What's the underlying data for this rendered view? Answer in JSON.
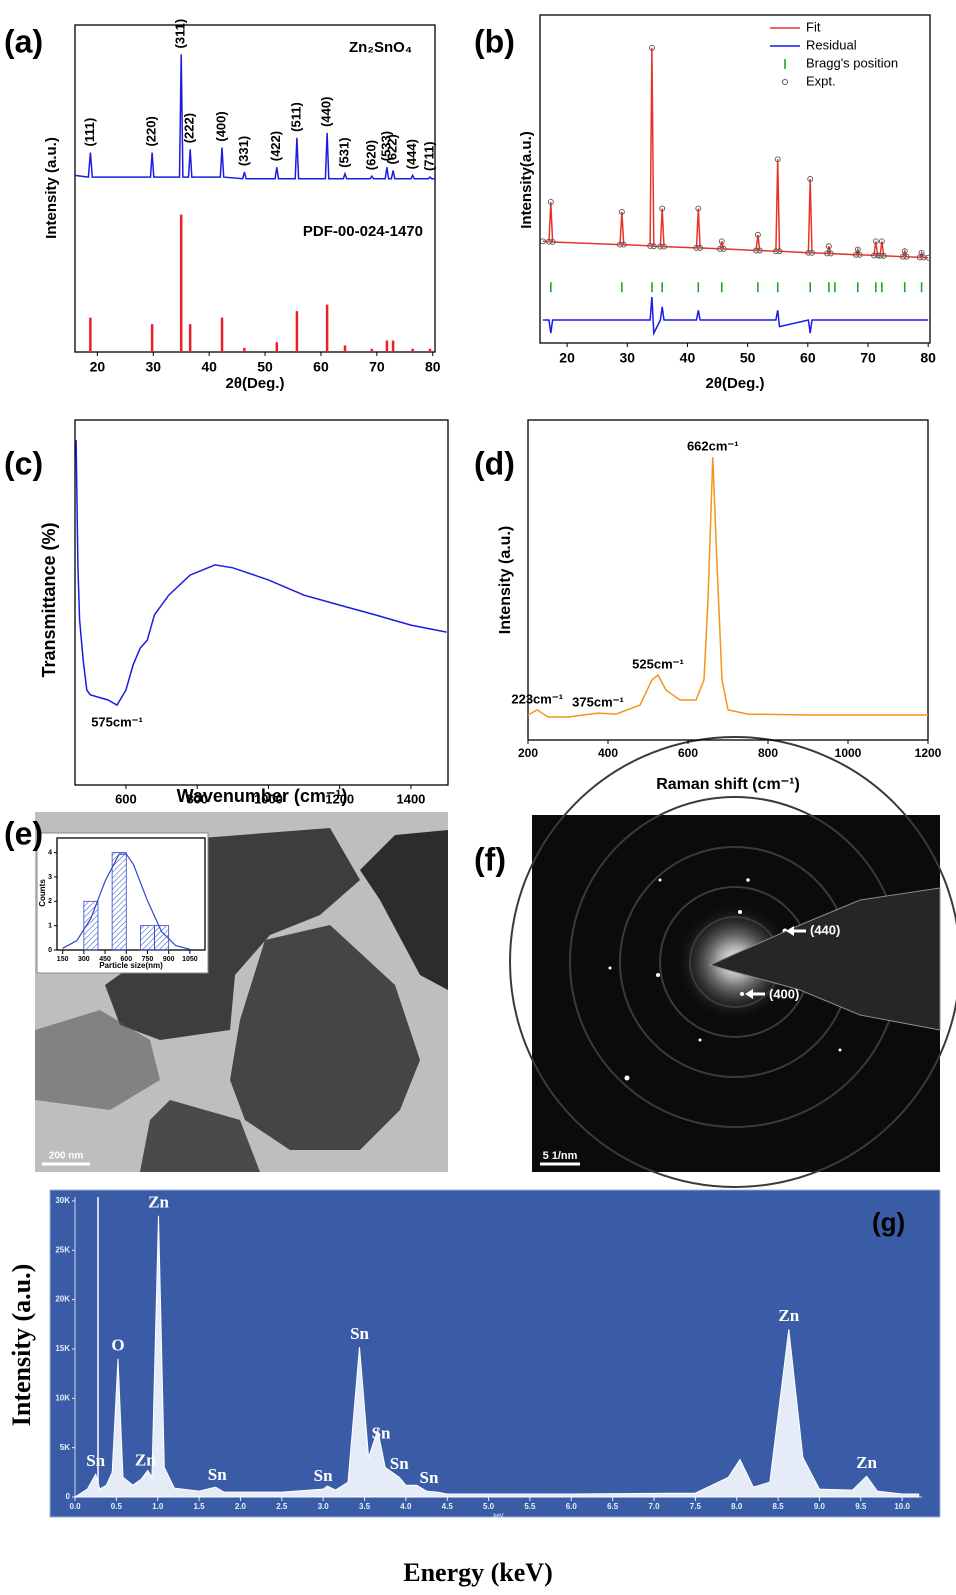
{
  "chart_data": [
    {
      "type": "line",
      "panel_label": "(a)",
      "x_label": "2θ(Deg.)",
      "y_label": "Intensity (a.u.)",
      "xlim": [
        16,
        80.4
      ],
      "xticks": [
        20,
        30,
        40,
        50,
        60,
        70,
        80
      ],
      "ylim": [
        0,
        200
      ],
      "series": [
        {
          "name": "Zn₂SnO₄",
          "color": "#1c1ce0",
          "type": "line",
          "x": [
            16,
            18.4,
            18.75,
            19.1,
            29.5,
            29.8,
            30.1,
            34.7,
            35.0,
            35.3,
            36.3,
            36.6,
            36.9,
            42.0,
            42.3,
            42.6,
            46.0,
            46.3,
            46.6,
            51.8,
            52.1,
            52.4,
            55.4,
            55.7,
            56.0,
            60.8,
            61.1,
            61.4,
            64.0,
            64.3,
            64.6,
            68.8,
            69.1,
            69.4,
            71.5,
            71.8,
            72.1,
            72.6,
            72.9,
            73.2,
            76.1,
            76.4,
            76.7,
            79.2,
            79.5,
            79.8,
            80.4
          ],
          "values": [
            108,
            107,
            122,
            107,
            107,
            122,
            107,
            107,
            182,
            107,
            107,
            124,
            107,
            107,
            125,
            107,
            106,
            110,
            106,
            106,
            113,
            106,
            106,
            131,
            106,
            106,
            134,
            106,
            106,
            109,
            106,
            106,
            107.5,
            106,
            106,
            113,
            106,
            106,
            111,
            106,
            106,
            108,
            106,
            106,
            107,
            106,
            106
          ]
        },
        {
          "name": "PDF-00-024-1470",
          "color": "#e8202a",
          "type": "stick",
          "x": [
            18.75,
            29.8,
            35.0,
            36.6,
            42.3,
            46.3,
            52.1,
            55.7,
            61.1,
            64.3,
            69.1,
            71.8,
            72.9,
            76.4,
            79.5
          ],
          "values": [
            21,
            17,
            84,
            17,
            21,
            2.5,
            6,
            25,
            29,
            4,
            2,
            7,
            7,
            2,
            2
          ],
          "labels": [
            "(111)",
            "(220)",
            "(311)",
            "(222)",
            "(400)",
            "(331)",
            "(422)",
            "(511)",
            "(440)",
            "(531)",
            "(620)",
            "(533)",
            "(622)",
            "(444)",
            "(711)"
          ]
        }
      ]
    },
    {
      "type": "line",
      "panel_label": "(b)",
      "x_label": "2θ(Deg.)",
      "y_label": "Intensity(a.u.)",
      "xlim": [
        15.5,
        80.3
      ],
      "xticks": [
        20,
        30,
        40,
        50,
        60,
        70,
        80
      ],
      "ylim": [
        0,
        100
      ],
      "legend": "upper right",
      "x": [
        16,
        17.0,
        17.3,
        17.6,
        28.8,
        29.1,
        29.4,
        33.8,
        34.1,
        34.4,
        35.5,
        35.8,
        36.1,
        41.5,
        41.8,
        42.1,
        45.4,
        45.7,
        46.0,
        51.4,
        51.7,
        52.0,
        54.7,
        55.0,
        55.3,
        60.1,
        60.4,
        60.7,
        63.2,
        63.5,
        63.8,
        68.0,
        68.3,
        68.6,
        71.0,
        71.3,
        71.6,
        72.0,
        72.3,
        72.6,
        75.8,
        76.1,
        76.4,
        78.6,
        78.9,
        79.2,
        80
      ],
      "series": [
        {
          "name": "Fit",
          "color": "#e8332a",
          "type": "line",
          "values": [
            31,
            30.9,
            43,
            30.8,
            30.0,
            40,
            30.0,
            29.6,
            90,
            29.5,
            29.4,
            41,
            29.4,
            29.0,
            41,
            29.0,
            28.7,
            31,
            28.7,
            28.2,
            33,
            28.2,
            28.0,
            56,
            28.0,
            27.5,
            50,
            27.5,
            27.3,
            29.5,
            27.3,
            26.9,
            28.5,
            26.9,
            26.7,
            31,
            26.7,
            26.6,
            31,
            26.6,
            26.3,
            28,
            26.3,
            26.1,
            27.5,
            26.1,
            26
          ]
        },
        {
          "name": "Residual",
          "color": "#1a1ae6",
          "type": "line",
          "values": [
            7,
            7,
            3,
            7,
            7,
            7,
            7,
            7,
            14,
            3,
            7,
            11,
            7,
            7,
            10,
            7,
            7,
            7,
            7,
            7,
            7,
            7,
            7,
            10,
            5,
            7,
            3,
            7,
            7,
            7,
            7,
            7,
            7,
            7,
            7,
            7,
            7,
            7,
            7,
            7,
            7,
            7,
            7,
            7,
            7,
            7,
            7
          ]
        },
        {
          "name": "Bragg's position",
          "color": "#2aa02a",
          "type": "tick",
          "level": 17,
          "x": [
            17.3,
            29.1,
            34.1,
            35.8,
            41.8,
            45.7,
            51.7,
            55.0,
            60.4,
            63.5,
            64.5,
            68.3,
            71.3,
            72.3,
            76.1,
            78.9
          ]
        },
        {
          "name": "Expt.",
          "color": "#555555",
          "type": "scatter",
          "values": [
            31,
            30.9,
            43,
            30.8,
            30.0,
            40,
            30.0,
            29.6,
            90,
            29.5,
            29.4,
            41,
            29.4,
            29.0,
            41,
            29.0,
            28.7,
            31,
            28.7,
            28.2,
            33,
            28.2,
            28.0,
            56,
            28.0,
            27.5,
            50,
            27.5,
            27.3,
            29.5,
            27.3,
            26.9,
            28.5,
            26.9,
            26.7,
            31,
            26.7,
            26.6,
            31,
            26.6,
            26.3,
            28,
            26.3,
            26.1,
            27.5,
            26.1,
            26
          ]
        }
      ]
    },
    {
      "type": "line",
      "panel_label": "(c)",
      "x_label": "Wavenumber (cm⁻¹)",
      "y_label": "Transmittance (%)",
      "xlim": [
        457,
        1504
      ],
      "xticks": [
        600,
        800,
        1000,
        1200,
        1400
      ],
      "ylim": [
        0,
        100
      ],
      "color": "#1c1ce0",
      "x": [
        460,
        465,
        470,
        480,
        490,
        500,
        550,
        575,
        600,
        620,
        640,
        660,
        680,
        720,
        780,
        850,
        900,
        1000,
        1100,
        1200,
        1300,
        1400,
        1500
      ],
      "values": [
        94.5,
        60,
        45.2,
        34.2,
        26,
        24.7,
        23.3,
        21.9,
        26,
        32.9,
        37.5,
        39.7,
        46.6,
        52,
        57.5,
        60.3,
        59.5,
        56.2,
        52,
        49.3,
        46.6,
        43.8,
        41.9
      ],
      "annotations": [
        {
          "text": "575cm⁻¹",
          "x": 575
        }
      ]
    },
    {
      "type": "line",
      "panel_label": "(d)",
      "x_label": "Raman shift (cm⁻¹)",
      "y_label": "Intensity (a.u.)",
      "xlim": [
        200,
        1200
      ],
      "xticks": [
        200,
        400,
        600,
        800,
        1000,
        1200
      ],
      "ylim": [
        0,
        100
      ],
      "color": "#f7941d",
      "x": [
        200,
        223,
        250,
        300,
        375,
        420,
        480,
        510,
        525,
        545,
        580,
        620,
        640,
        650,
        662,
        672,
        685,
        700,
        750,
        900,
        1200
      ],
      "values": [
        7.8,
        9.4,
        7.2,
        7.2,
        8.4,
        8.1,
        10.9,
        18.8,
        20.3,
        15.6,
        12.5,
        12.5,
        18.8,
        43.8,
        88.4,
        56.3,
        18.8,
        9.4,
        8.1,
        7.8,
        7.8
      ],
      "annotations": [
        {
          "text": "662cm⁻¹",
          "x": 662
        },
        {
          "text": "525cm⁻¹",
          "x": 525
        },
        {
          "text": "375cm⁻¹",
          "x": 375
        },
        {
          "text": "223cm⁻¹",
          "x": 223
        }
      ]
    },
    {
      "type": "histogram",
      "panel_label": "(e)",
      "x_label": "Particle size(nm)",
      "y_label": "Counts",
      "xlim": [
        110,
        1157
      ],
      "xticks": [
        150,
        300,
        450,
        600,
        750,
        900,
        1050
      ],
      "ylim": [
        0,
        4.6
      ],
      "yticks": [
        0,
        1,
        2,
        3,
        4
      ],
      "bins": [
        300,
        400,
        500,
        600,
        700,
        800,
        900
      ],
      "counts": [
        2,
        0,
        4,
        0,
        1,
        1
      ],
      "color": "#2f47c8",
      "fit": {
        "x": [
          150,
          250,
          350,
          450,
          550,
          600,
          650,
          750,
          850,
          950,
          1050
        ],
        "values": [
          0.07,
          0.38,
          1.3,
          2.83,
          3.94,
          3.94,
          3.53,
          2.02,
          0.75,
          0.18,
          0.03
        ]
      },
      "scale_bar": "200 nm"
    },
    {
      "type": "image",
      "panel_label": "(f)",
      "annotations": [
        "(440)",
        "(400)"
      ],
      "scale_bar": "5 1/nm"
    },
    {
      "type": "area",
      "panel_label": "(g)",
      "x_label": "Energy (keV)",
      "y_label": "Intensity (a.u.)",
      "x_unit": "keV",
      "xlim": [
        0,
        10.24
      ],
      "ylim": [
        0,
        30400
      ],
      "color": "#e6ecf7",
      "xticks": [
        {
          "value": 0,
          "label": "0.0"
        },
        0.5,
        {
          "value": 1,
          "label": "1.0"
        },
        1.5,
        {
          "value": 2,
          "label": "2.0"
        },
        2.5,
        {
          "value": 3,
          "label": "3.0"
        },
        3.5,
        {
          "value": 4,
          "label": "4.0"
        },
        4.5,
        {
          "value": 5,
          "label": "5.0"
        },
        5.5,
        {
          "value": 6,
          "label": "6.0"
        },
        6.5,
        {
          "value": 7,
          "label": "7.0"
        },
        7.5,
        {
          "value": 8,
          "label": "8.0"
        },
        8.5,
        {
          "value": 9,
          "label": "9.0"
        },
        9.5,
        {
          "value": 10,
          "label": "10.0"
        }
      ],
      "yticks": [
        0,
        {
          "value": 5000,
          "label": "5K"
        },
        {
          "value": 10000,
          "label": "10K"
        },
        {
          "value": 15000,
          "label": "15K"
        },
        {
          "value": 20000,
          "label": "20K"
        },
        {
          "value": 25000,
          "label": "25K"
        },
        {
          "value": 30000,
          "label": "30K"
        }
      ],
      "x": [
        0,
        0.15,
        0.25,
        0.3,
        0.38,
        0.45,
        0.52,
        0.58,
        0.7,
        0.8,
        0.88,
        0.93,
        1.01,
        1.08,
        1.2,
        1.5,
        1.7,
        1.8,
        2.5,
        3.0,
        3.05,
        3.15,
        3.3,
        3.44,
        3.55,
        3.66,
        3.75,
        3.92,
        4.0,
        4.13,
        4.25,
        4.38,
        4.5,
        5.0,
        6.0,
        7.5,
        7.9,
        8.04,
        8.2,
        8.4,
        8.63,
        8.8,
        9.0,
        9.4,
        9.57,
        9.7,
        10.0,
        10.2
      ],
      "values": [
        0,
        800,
        2300,
        800,
        1200,
        2500,
        14000,
        2000,
        1200,
        1800,
        2700,
        2000,
        28500,
        3000,
        900,
        600,
        1000,
        500,
        500,
        800,
        1100,
        700,
        1500,
        15200,
        4000,
        6800,
        3000,
        2000,
        1200,
        1200,
        600,
        500,
        300,
        300,
        300,
        400,
        2000,
        3800,
        1000,
        1500,
        17000,
        4000,
        800,
        700,
        2100,
        600,
        300,
        300
      ],
      "annotations": [
        {
          "text": "Sn",
          "x": 0.25
        },
        {
          "text": "O",
          "x": 0.52
        },
        {
          "text": "Zn",
          "x": 0.85
        },
        {
          "text": "Zn",
          "x": 1.01
        },
        {
          "text": "Sn",
          "x": 1.72
        },
        {
          "text": "Sn",
          "x": 3.0
        },
        {
          "text": "Sn",
          "x": 3.44
        },
        {
          "text": "Sn",
          "x": 3.7
        },
        {
          "text": "Sn",
          "x": 3.92
        },
        {
          "text": "Sn",
          "x": 4.28
        },
        {
          "text": "Zn",
          "x": 8.63
        },
        {
          "text": "Zn",
          "x": 9.57
        }
      ]
    }
  ]
}
